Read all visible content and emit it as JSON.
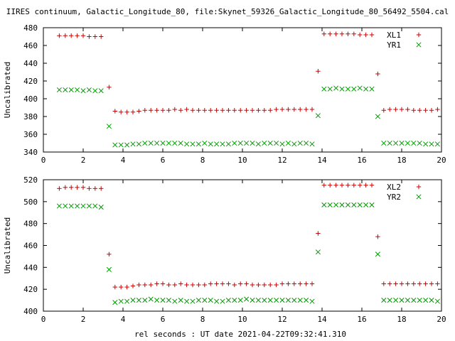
{
  "title": "IIRES continuum, Galactic_Longitude_80, file:Skynet_59326_Galactic_Longitude_80_56492_5504.cal",
  "xlabel": "rel seconds : UT date 2021-04-22T09:32:41.310",
  "colors": {
    "series1": "#cc0000",
    "series2": "#009900",
    "axis": "#000000"
  },
  "chart_data": [
    {
      "type": "scatter",
      "ylabel": "Uncalibrated",
      "xlim": [
        0,
        20
      ],
      "ylim": [
        340,
        480
      ],
      "xticks": [
        0,
        2,
        4,
        6,
        8,
        10,
        12,
        14,
        16,
        18,
        20
      ],
      "yticks": [
        340,
        360,
        380,
        400,
        420,
        440,
        460,
        480
      ],
      "legend_position": "top-right",
      "series": [
        {
          "name": "XL1",
          "marker": "+",
          "x": [
            0.8,
            1.1,
            1.4,
            1.7,
            2.0,
            2.3,
            2.6,
            2.9,
            3.3,
            3.6,
            3.9,
            4.2,
            4.5,
            4.8,
            5.1,
            5.4,
            5.7,
            6.0,
            6.3,
            6.6,
            6.9,
            7.2,
            7.5,
            7.8,
            8.1,
            8.4,
            8.7,
            9.0,
            9.3,
            9.6,
            9.9,
            10.2,
            10.5,
            10.8,
            11.1,
            11.4,
            11.7,
            12.0,
            12.3,
            12.6,
            12.9,
            13.2,
            13.5,
            13.8,
            14.1,
            14.4,
            14.7,
            15.0,
            15.3,
            15.6,
            15.9,
            16.2,
            16.5,
            16.8,
            17.1,
            17.4,
            17.7,
            18.0,
            18.3,
            18.6,
            18.9,
            19.2,
            19.5,
            19.8
          ],
          "y": [
            471,
            471,
            471,
            471,
            471,
            470,
            470,
            470,
            413,
            386,
            385,
            385,
            385,
            386,
            387,
            387,
            387,
            387,
            387,
            388,
            387,
            388,
            387,
            387,
            387,
            387,
            387,
            387,
            387,
            387,
            387,
            387,
            387,
            387,
            387,
            387,
            388,
            388,
            388,
            388,
            388,
            388,
            388,
            431,
            473,
            473,
            473,
            473,
            473,
            473,
            472,
            472,
            472,
            428,
            387,
            388,
            388,
            388,
            388,
            387,
            387,
            387,
            387,
            388
          ]
        },
        {
          "name": "YR1",
          "marker": "x",
          "x": [
            0.8,
            1.1,
            1.4,
            1.7,
            2.0,
            2.3,
            2.6,
            2.9,
            3.3,
            3.6,
            3.9,
            4.2,
            4.5,
            4.8,
            5.1,
            5.4,
            5.7,
            6.0,
            6.3,
            6.6,
            6.9,
            7.2,
            7.5,
            7.8,
            8.1,
            8.4,
            8.7,
            9.0,
            9.3,
            9.6,
            9.9,
            10.2,
            10.5,
            10.8,
            11.1,
            11.4,
            11.7,
            12.0,
            12.3,
            12.6,
            12.9,
            13.2,
            13.5,
            13.8,
            14.1,
            14.4,
            14.7,
            15.0,
            15.3,
            15.6,
            15.9,
            16.2,
            16.5,
            16.8,
            17.1,
            17.4,
            17.7,
            18.0,
            18.3,
            18.6,
            18.9,
            19.2,
            19.5,
            19.8
          ],
          "y": [
            410,
            410,
            410,
            410,
            409,
            410,
            409,
            409,
            369,
            348,
            348,
            348,
            349,
            349,
            350,
            350,
            350,
            350,
            350,
            350,
            350,
            349,
            349,
            349,
            350,
            349,
            349,
            349,
            349,
            350,
            350,
            350,
            350,
            349,
            350,
            350,
            350,
            349,
            350,
            349,
            350,
            350,
            349,
            381,
            411,
            411,
            412,
            411,
            411,
            411,
            412,
            411,
            411,
            380,
            350,
            350,
            350,
            350,
            350,
            350,
            350,
            349,
            349,
            349
          ]
        }
      ]
    },
    {
      "type": "scatter",
      "ylabel": "Uncalibrated",
      "xlim": [
        0,
        20
      ],
      "ylim": [
        400,
        520
      ],
      "xticks": [
        0,
        2,
        4,
        6,
        8,
        10,
        12,
        14,
        16,
        18,
        20
      ],
      "yticks": [
        400,
        420,
        440,
        460,
        480,
        500,
        520
      ],
      "legend_position": "top-right",
      "series": [
        {
          "name": "XL2",
          "marker": "+",
          "x": [
            0.8,
            1.1,
            1.4,
            1.7,
            2.0,
            2.3,
            2.6,
            2.9,
            3.3,
            3.6,
            3.9,
            4.2,
            4.5,
            4.8,
            5.1,
            5.4,
            5.7,
            6.0,
            6.3,
            6.6,
            6.9,
            7.2,
            7.5,
            7.8,
            8.1,
            8.4,
            8.7,
            9.0,
            9.3,
            9.6,
            9.9,
            10.2,
            10.5,
            10.8,
            11.1,
            11.4,
            11.7,
            12.0,
            12.3,
            12.6,
            12.9,
            13.2,
            13.5,
            13.8,
            14.1,
            14.4,
            14.7,
            15.0,
            15.3,
            15.6,
            15.9,
            16.2,
            16.5,
            16.8,
            17.1,
            17.4,
            17.7,
            18.0,
            18.3,
            18.6,
            18.9,
            19.2,
            19.5,
            19.8
          ],
          "y": [
            512,
            513,
            513,
            513,
            513,
            512,
            512,
            512,
            452,
            422,
            422,
            422,
            423,
            424,
            424,
            424,
            425,
            425,
            424,
            424,
            425,
            424,
            424,
            424,
            424,
            425,
            425,
            425,
            425,
            424,
            425,
            425,
            424,
            424,
            424,
            424,
            424,
            425,
            425,
            425,
            425,
            425,
            425,
            471,
            515,
            515,
            515,
            515,
            515,
            515,
            515,
            515,
            515,
            468,
            425,
            425,
            425,
            425,
            425,
            425,
            425,
            425,
            425,
            425
          ]
        },
        {
          "name": "YR2",
          "marker": "x",
          "x": [
            0.8,
            1.1,
            1.4,
            1.7,
            2.0,
            2.3,
            2.6,
            2.9,
            3.3,
            3.6,
            3.9,
            4.2,
            4.5,
            4.8,
            5.1,
            5.4,
            5.7,
            6.0,
            6.3,
            6.6,
            6.9,
            7.2,
            7.5,
            7.8,
            8.1,
            8.4,
            8.7,
            9.0,
            9.3,
            9.6,
            9.9,
            10.2,
            10.5,
            10.8,
            11.1,
            11.4,
            11.7,
            12.0,
            12.3,
            12.6,
            12.9,
            13.2,
            13.5,
            13.8,
            14.1,
            14.4,
            14.7,
            15.0,
            15.3,
            15.6,
            15.9,
            16.2,
            16.5,
            16.8,
            17.1,
            17.4,
            17.7,
            18.0,
            18.3,
            18.6,
            18.9,
            19.2,
            19.5,
            19.8
          ],
          "y": [
            496,
            496,
            496,
            496,
            496,
            496,
            496,
            495,
            438,
            408,
            409,
            409,
            410,
            410,
            410,
            411,
            410,
            410,
            410,
            409,
            410,
            409,
            409,
            410,
            410,
            410,
            409,
            409,
            410,
            410,
            410,
            411,
            410,
            410,
            410,
            410,
            410,
            410,
            410,
            410,
            410,
            410,
            409,
            454,
            497,
            497,
            497,
            497,
            497,
            497,
            497,
            497,
            497,
            452,
            410,
            410,
            410,
            410,
            410,
            410,
            410,
            410,
            410,
            409
          ]
        }
      ]
    }
  ]
}
